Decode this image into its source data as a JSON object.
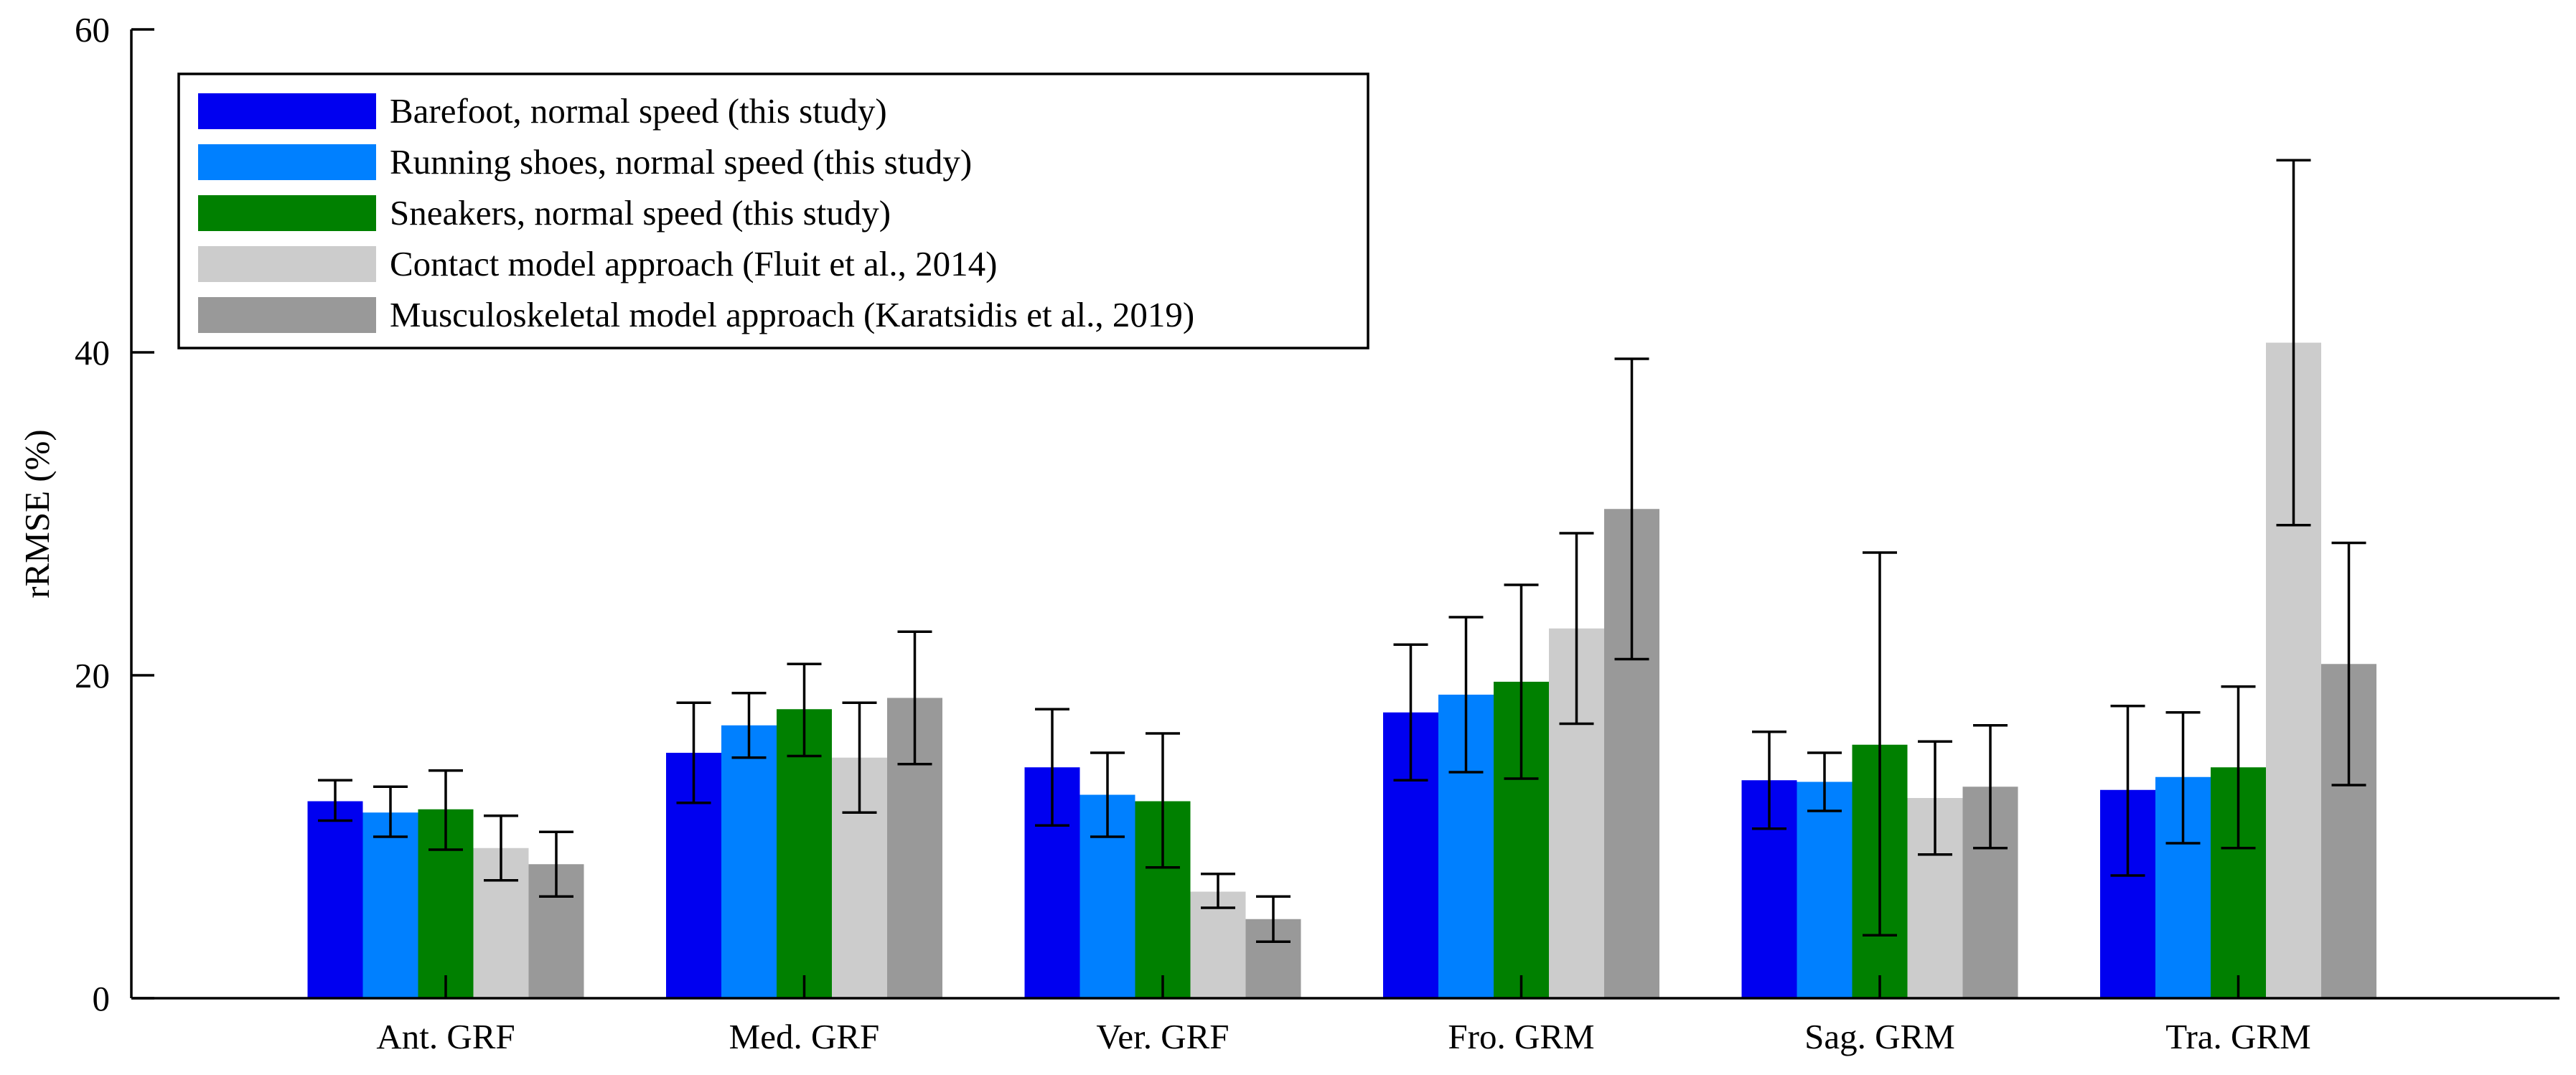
{
  "chart_data": {
    "type": "bar",
    "title": "",
    "xlabel": "",
    "ylabel": "rRMSE (%)",
    "ylim": [
      0,
      60
    ],
    "yticks": [
      0,
      20,
      40,
      60
    ],
    "categories": [
      "Ant. GRF",
      "Med. GRF",
      "Ver. GRF",
      "Fro. GRM",
      "Sag. GRM",
      "Tra. GRM"
    ],
    "legend_position": "top-left",
    "series": [
      {
        "name": "Barefoot, normal speed (this study)",
        "color": "#0000f0",
        "values": [
          12.2,
          15.2,
          14.3,
          17.7,
          13.5,
          12.9
        ],
        "err_low": [
          11.0,
          12.1,
          10.7,
          13.5,
          10.5,
          7.6
        ],
        "err_high": [
          13.5,
          18.3,
          17.9,
          21.9,
          16.5,
          18.1
        ]
      },
      {
        "name": "Running shoes, normal speed (this study)",
        "color": "#0080ff",
        "values": [
          11.5,
          16.9,
          12.6,
          18.8,
          13.4,
          13.7
        ],
        "err_low": [
          10.0,
          14.9,
          10.0,
          14.0,
          11.6,
          9.6
        ],
        "err_high": [
          13.1,
          18.9,
          15.2,
          23.6,
          15.2,
          17.7
        ]
      },
      {
        "name": "Sneakers, normal speed (this study)",
        "color": "#008000",
        "values": [
          11.7,
          17.9,
          12.2,
          19.6,
          15.7,
          14.3
        ],
        "err_low": [
          9.2,
          15.0,
          8.1,
          13.6,
          3.9,
          9.3
        ],
        "err_high": [
          14.1,
          20.7,
          16.4,
          25.6,
          27.6,
          19.3
        ]
      },
      {
        "name": "Contact model approach (Fluit et al., 2014)",
        "color": "#cccccc",
        "values": [
          9.3,
          14.9,
          6.6,
          22.9,
          12.4,
          40.6
        ],
        "err_low": [
          7.3,
          11.5,
          5.6,
          17.0,
          8.9,
          29.3
        ],
        "err_high": [
          11.3,
          18.3,
          7.7,
          28.8,
          15.9,
          51.9
        ]
      },
      {
        "name": "Musculoskeletal model approach (Karatsidis et al., 2019)",
        "color": "#999999",
        "values": [
          8.3,
          18.6,
          4.9,
          30.3,
          13.1,
          20.7
        ],
        "err_low": [
          6.3,
          14.5,
          3.5,
          21.0,
          9.3,
          13.2
        ],
        "err_high": [
          10.3,
          22.7,
          6.3,
          39.6,
          16.9,
          28.2
        ]
      }
    ]
  }
}
